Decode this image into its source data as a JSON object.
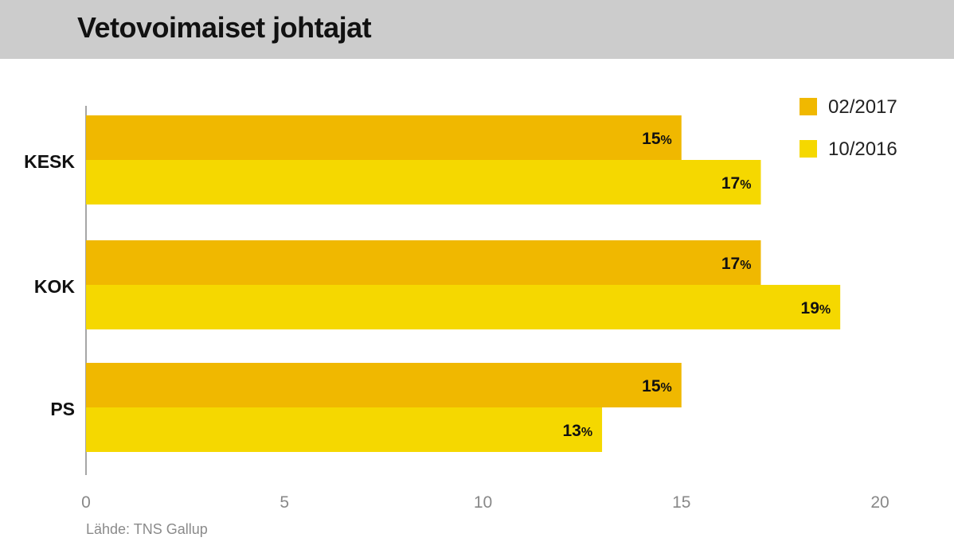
{
  "title": "Vetovoimaiset johtajat",
  "source": "Lähde: TNS Gallup",
  "chart_data": {
    "type": "bar",
    "orientation": "horizontal",
    "title": "Vetovoimaiset johtajat",
    "categories": [
      "KESK",
      "KOK",
      "PS"
    ],
    "series": [
      {
        "name": "02/2017",
        "values": [
          15,
          17,
          15
        ],
        "color": "#f0b800"
      },
      {
        "name": "10/2016",
        "values": [
          17,
          19,
          13
        ],
        "color": "#f5d800"
      }
    ],
    "value_suffix": "%",
    "xlim": [
      0,
      20
    ],
    "xticks": [
      0,
      5,
      10,
      15,
      20
    ],
    "grid": false,
    "legend": "top-right"
  }
}
